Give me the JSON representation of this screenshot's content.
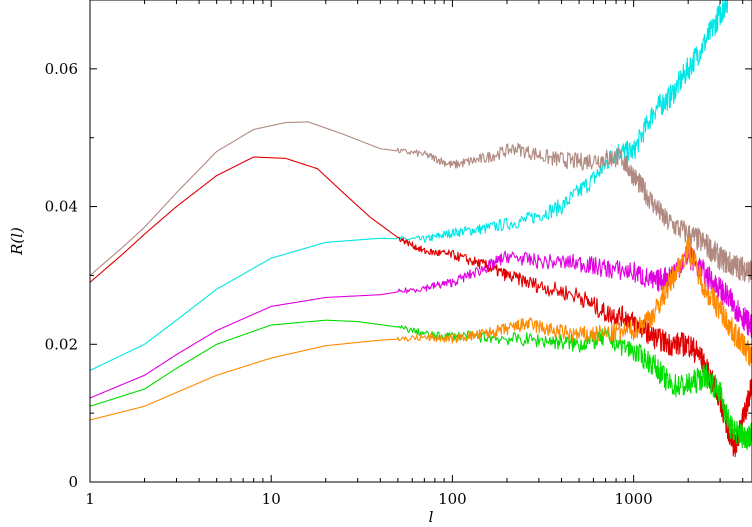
{
  "chart_data": {
    "type": "line",
    "title": "",
    "xlabel": "l",
    "ylabel": "R(l)",
    "x_scale": "log",
    "xlim": [
      1,
      4500
    ],
    "ylim": [
      0,
      0.07
    ],
    "x_ticks": [
      1,
      10,
      100,
      1000
    ],
    "x_tick_labels": [
      "1",
      "10",
      "100",
      "1000"
    ],
    "y_ticks": [
      0,
      0.02,
      0.04,
      0.06
    ],
    "y_tick_labels": [
      "0",
      "0.02",
      "0.04",
      "0.06"
    ],
    "grid": false,
    "legend": "none",
    "series": [
      {
        "color": "#00e5e5",
        "points": [
          [
            1,
            0.0162
          ],
          [
            2,
            0.02
          ],
          [
            3,
            0.0235
          ],
          [
            5,
            0.028
          ],
          [
            10,
            0.0325
          ],
          [
            20,
            0.0348
          ],
          [
            40,
            0.0354
          ],
          [
            70,
            0.0352
          ],
          [
            100,
            0.0362
          ],
          [
            150,
            0.0368
          ],
          [
            250,
            0.038
          ],
          [
            400,
            0.04
          ],
          [
            600,
            0.044
          ],
          [
            800,
            0.048
          ],
          [
            1000,
            0.048
          ],
          [
            1300,
            0.054
          ],
          [
            1600,
            0.056
          ],
          [
            2000,
            0.06
          ],
          [
            2500,
            0.064
          ],
          [
            3000,
            0.068
          ],
          [
            3300,
            0.07
          ]
        ]
      },
      {
        "color": "#b08a80",
        "points": [
          [
            1,
            0.03
          ],
          [
            1.5,
            0.034
          ],
          [
            2,
            0.037
          ],
          [
            3,
            0.042
          ],
          [
            5,
            0.048
          ],
          [
            8,
            0.0512
          ],
          [
            12,
            0.0522
          ],
          [
            16,
            0.0523
          ],
          [
            25,
            0.0505
          ],
          [
            40,
            0.0484
          ],
          [
            70,
            0.0476
          ],
          [
            100,
            0.046
          ],
          [
            150,
            0.047
          ],
          [
            220,
            0.0485
          ],
          [
            350,
            0.047
          ],
          [
            500,
            0.0465
          ],
          [
            700,
            0.047
          ],
          [
            850,
            0.0472
          ],
          [
            1000,
            0.0445
          ],
          [
            1200,
            0.0415
          ],
          [
            1500,
            0.038
          ],
          [
            2000,
            0.036
          ],
          [
            2500,
            0.0345
          ],
          [
            3000,
            0.0325
          ],
          [
            3500,
            0.0315
          ],
          [
            4000,
            0.031
          ],
          [
            4500,
            0.0305
          ]
        ]
      },
      {
        "color": "#e00000",
        "points": [
          [
            1,
            0.029
          ],
          [
            1.5,
            0.033
          ],
          [
            2,
            0.036
          ],
          [
            3,
            0.04
          ],
          [
            5,
            0.0445
          ],
          [
            8,
            0.0472
          ],
          [
            12,
            0.047
          ],
          [
            18,
            0.0455
          ],
          [
            25,
            0.042
          ],
          [
            35,
            0.0385
          ],
          [
            50,
            0.0355
          ],
          [
            70,
            0.0335
          ],
          [
            100,
            0.033
          ],
          [
            150,
            0.0315
          ],
          [
            200,
            0.03
          ],
          [
            300,
            0.0285
          ],
          [
            500,
            0.027
          ],
          [
            700,
            0.0245
          ],
          [
            900,
            0.024
          ],
          [
            1100,
            0.0225
          ],
          [
            1300,
            0.021
          ],
          [
            1600,
            0.02
          ],
          [
            2000,
            0.02
          ],
          [
            2300,
            0.0185
          ],
          [
            2600,
            0.0155
          ],
          [
            3000,
            0.012
          ],
          [
            3300,
            0.008
          ],
          [
            3600,
            0.005
          ],
          [
            3900,
            0.008
          ],
          [
            4200,
            0.011
          ],
          [
            4500,
            0.014
          ]
        ]
      },
      {
        "color": "#e000e0",
        "points": [
          [
            1,
            0.0122
          ],
          [
            2,
            0.0155
          ],
          [
            3,
            0.0185
          ],
          [
            5,
            0.022
          ],
          [
            10,
            0.0255
          ],
          [
            20,
            0.0268
          ],
          [
            40,
            0.0272
          ],
          [
            70,
            0.0282
          ],
          [
            100,
            0.029
          ],
          [
            150,
            0.031
          ],
          [
            200,
            0.0328
          ],
          [
            300,
            0.032
          ],
          [
            500,
            0.0318
          ],
          [
            700,
            0.031
          ],
          [
            1000,
            0.0305
          ],
          [
            1300,
            0.029
          ],
          [
            1600,
            0.03
          ],
          [
            2000,
            0.033
          ],
          [
            2500,
            0.03
          ],
          [
            3000,
            0.028
          ],
          [
            3500,
            0.026
          ],
          [
            4000,
            0.024
          ],
          [
            4500,
            0.0225
          ]
        ]
      },
      {
        "color": "#00dd00",
        "points": [
          [
            1,
            0.011
          ],
          [
            2,
            0.0135
          ],
          [
            3,
            0.0165
          ],
          [
            5,
            0.02
          ],
          [
            10,
            0.0228
          ],
          [
            20,
            0.0235
          ],
          [
            30,
            0.0233
          ],
          [
            50,
            0.0225
          ],
          [
            80,
            0.0212
          ],
          [
            120,
            0.0212
          ],
          [
            200,
            0.0208
          ],
          [
            350,
            0.0205
          ],
          [
            500,
            0.02
          ],
          [
            700,
            0.021
          ],
          [
            1000,
            0.019
          ],
          [
            1300,
            0.017
          ],
          [
            1600,
            0.014
          ],
          [
            2000,
            0.014
          ],
          [
            2500,
            0.0155
          ],
          [
            3000,
            0.013
          ],
          [
            3400,
            0.008
          ],
          [
            3800,
            0.007
          ],
          [
            4200,
            0.0065
          ],
          [
            4500,
            0.0068
          ]
        ]
      },
      {
        "color": "#ff8a00",
        "points": [
          [
            1,
            0.009
          ],
          [
            2,
            0.011
          ],
          [
            3,
            0.013
          ],
          [
            5,
            0.0155
          ],
          [
            10,
            0.018
          ],
          [
            20,
            0.0198
          ],
          [
            40,
            0.0206
          ],
          [
            70,
            0.021
          ],
          [
            100,
            0.0208
          ],
          [
            150,
            0.0215
          ],
          [
            200,
            0.0222
          ],
          [
            260,
            0.023
          ],
          [
            350,
            0.022
          ],
          [
            500,
            0.0213
          ],
          [
            700,
            0.0215
          ],
          [
            1000,
            0.022
          ],
          [
            1300,
            0.0245
          ],
          [
            1600,
            0.029
          ],
          [
            2000,
            0.034
          ],
          [
            2500,
            0.028
          ],
          [
            3000,
            0.025
          ],
          [
            3500,
            0.022
          ],
          [
            4000,
            0.02
          ],
          [
            4500,
            0.018
          ]
        ]
      }
    ]
  }
}
